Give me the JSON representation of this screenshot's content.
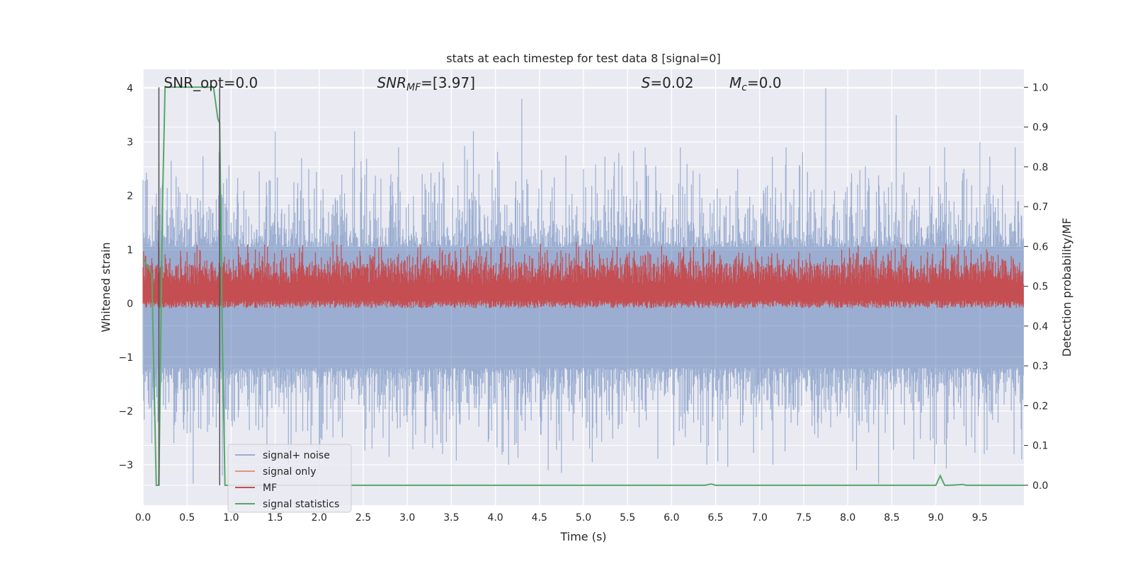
{
  "chart_data": {
    "type": "line",
    "title": "stats at each timestep for test data 8 [signal=0]",
    "xlabel": "Time (s)",
    "ylabel": "Whitened strain",
    "ylabel_right": "Detection probability/MF",
    "xlim": [
      0.0,
      10.0
    ],
    "ylim": [
      -3.75,
      4.35
    ],
    "ylim_right": [
      -0.05,
      1.045
    ],
    "x_ticks": [
      "0.0",
      "0.5",
      "1.0",
      "1.5",
      "2.0",
      "2.5",
      "3.0",
      "3.5",
      "4.0",
      "4.5",
      "5.0",
      "5.5",
      "6.0",
      "6.5",
      "7.0",
      "7.5",
      "8.0",
      "8.5",
      "9.0",
      "9.5"
    ],
    "y_ticks": [
      "−3",
      "−2",
      "−1",
      "0",
      "1",
      "2",
      "3",
      "4"
    ],
    "y_ticks_right": [
      "0.0",
      "0.1",
      "0.2",
      "0.3",
      "0.4",
      "0.5",
      "0.6",
      "0.7",
      "0.8",
      "0.9",
      "1.0"
    ],
    "grid": true,
    "legend_position": "lower-left",
    "annotations": [
      {
        "text": "SNR_opt=0.0",
        "x": 0.18
      },
      {
        "text": "SNR_MF=[3.97]",
        "x": 2.6
      },
      {
        "text": "S=0.02",
        "x": 5.6
      },
      {
        "text": "M_c=0.0",
        "x": 6.6
      }
    ],
    "vlines": [
      0.18,
      0.87
    ],
    "series": [
      {
        "name": "signal+ noise",
        "color": "#4c72b0",
        "noise_band": [
          -1.2,
          1.05
        ],
        "peaks": [
          [
            0.05,
            2.3
          ],
          [
            0.1,
            -2.6
          ],
          [
            0.17,
            -2.2
          ],
          [
            0.22,
            2.2
          ],
          [
            0.57,
            -3.35
          ],
          [
            0.75,
            1.8
          ],
          [
            0.9,
            -3.2
          ],
          [
            1.0,
            1.5
          ],
          [
            1.5,
            3.2
          ],
          [
            1.65,
            -3.0
          ],
          [
            1.8,
            2.7
          ],
          [
            2.0,
            -3.1
          ],
          [
            2.4,
            3.2
          ],
          [
            2.6,
            -2.7
          ],
          [
            2.9,
            2.9
          ],
          [
            3.2,
            -2.6
          ],
          [
            3.4,
            -2.8
          ],
          [
            3.75,
            3.2
          ],
          [
            4.15,
            -3.0
          ],
          [
            4.3,
            3.8
          ],
          [
            4.6,
            -3.1
          ],
          [
            4.75,
            -3.15
          ],
          [
            5.0,
            2.5
          ],
          [
            5.1,
            -2.95
          ],
          [
            5.4,
            2.8
          ],
          [
            5.7,
            2.9
          ],
          [
            6.1,
            2.9
          ],
          [
            6.4,
            -3.0
          ],
          [
            6.75,
            2.5
          ],
          [
            7.15,
            -3.0
          ],
          [
            7.3,
            2.9
          ],
          [
            7.75,
            4.0
          ],
          [
            8.1,
            -3.1
          ],
          [
            8.35,
            -3.35
          ],
          [
            8.55,
            3.5
          ],
          [
            8.75,
            -2.9
          ],
          [
            9.1,
            2.9
          ],
          [
            9.5,
            3.0
          ],
          [
            9.55,
            -2.8
          ],
          [
            9.9,
            2.9
          ]
        ]
      },
      {
        "name": "signal only",
        "color": "#dd8452",
        "values": [
          0.0,
          0.0
        ]
      },
      {
        "name": "MF",
        "color": "#c44e52",
        "axis": "right",
        "band": [
          0.445,
          0.62
        ],
        "peaks": [
          [
            1.8,
            0.585
          ],
          [
            3.0,
            0.575
          ],
          [
            4.7,
            0.585
          ],
          [
            5.7,
            0.58
          ],
          [
            6.1,
            0.585
          ],
          [
            7.1,
            0.575
          ],
          [
            8.9,
            0.57
          ],
          [
            0.25,
            0.58
          ]
        ]
      },
      {
        "name": "signal statistics",
        "color": "#55a868",
        "axis": "right",
        "x": [
          0.0,
          0.05,
          0.1,
          0.15,
          0.18,
          0.22,
          0.25,
          0.3,
          0.4,
          0.5,
          0.6,
          0.7,
          0.8,
          0.85,
          0.87,
          0.9,
          0.93,
          1.0,
          2.0,
          3.0,
          4.0,
          5.0,
          6.0,
          6.38,
          6.45,
          6.5,
          7.0,
          8.0,
          9.0,
          9.05,
          9.1,
          9.15,
          9.25,
          9.3,
          9.35,
          9.4,
          9.5,
          10.0
        ],
        "values": [
          0.57,
          0.55,
          0.53,
          0.0,
          0.0,
          0.7,
          1.0,
          1.0,
          1.0,
          1.0,
          1.0,
          1.0,
          1.0,
          0.92,
          0.91,
          0.37,
          0.0,
          0.0,
          0.0,
          0.0,
          0.0,
          0.0,
          0.0,
          0.0,
          0.003,
          0.0,
          0.0,
          0.0,
          0.0,
          0.024,
          0.0,
          0.0,
          0.001,
          0.002,
          0.0,
          0.0,
          0.0,
          0.0
        ]
      }
    ]
  }
}
